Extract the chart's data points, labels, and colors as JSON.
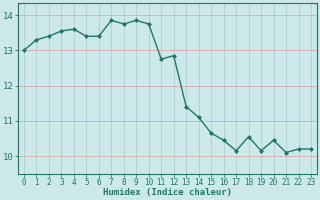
{
  "x": [
    0,
    1,
    2,
    3,
    4,
    5,
    6,
    7,
    8,
    9,
    10,
    11,
    12,
    13,
    14,
    15,
    16,
    17,
    18,
    19,
    20,
    21,
    22,
    23
  ],
  "y": [
    13.0,
    13.3,
    13.4,
    13.55,
    13.6,
    13.4,
    13.4,
    13.85,
    13.75,
    13.85,
    13.75,
    12.75,
    12.85,
    11.4,
    11.1,
    10.65,
    10.45,
    10.15,
    10.55,
    10.15,
    10.45,
    10.1,
    10.2,
    10.2
  ],
  "line_color": "#1a7a6a",
  "marker": "D",
  "marker_size": 2.0,
  "bg_color": "#cce8e8",
  "grid_color_v": "#aacece",
  "grid_color_h": "#daaaaa",
  "xlabel": "Humidex (Indice chaleur)",
  "xlabel_fontsize": 6.5,
  "tick_fontsize": 5.5,
  "ytick_fontsize": 6.5,
  "ylim": [
    9.5,
    14.35
  ],
  "xlim": [
    -0.5,
    23.5
  ],
  "yticks": [
    10,
    11,
    12,
    13,
    14
  ],
  "xticks": [
    0,
    1,
    2,
    3,
    4,
    5,
    6,
    7,
    8,
    9,
    10,
    11,
    12,
    13,
    14,
    15,
    16,
    17,
    18,
    19,
    20,
    21,
    22,
    23
  ]
}
